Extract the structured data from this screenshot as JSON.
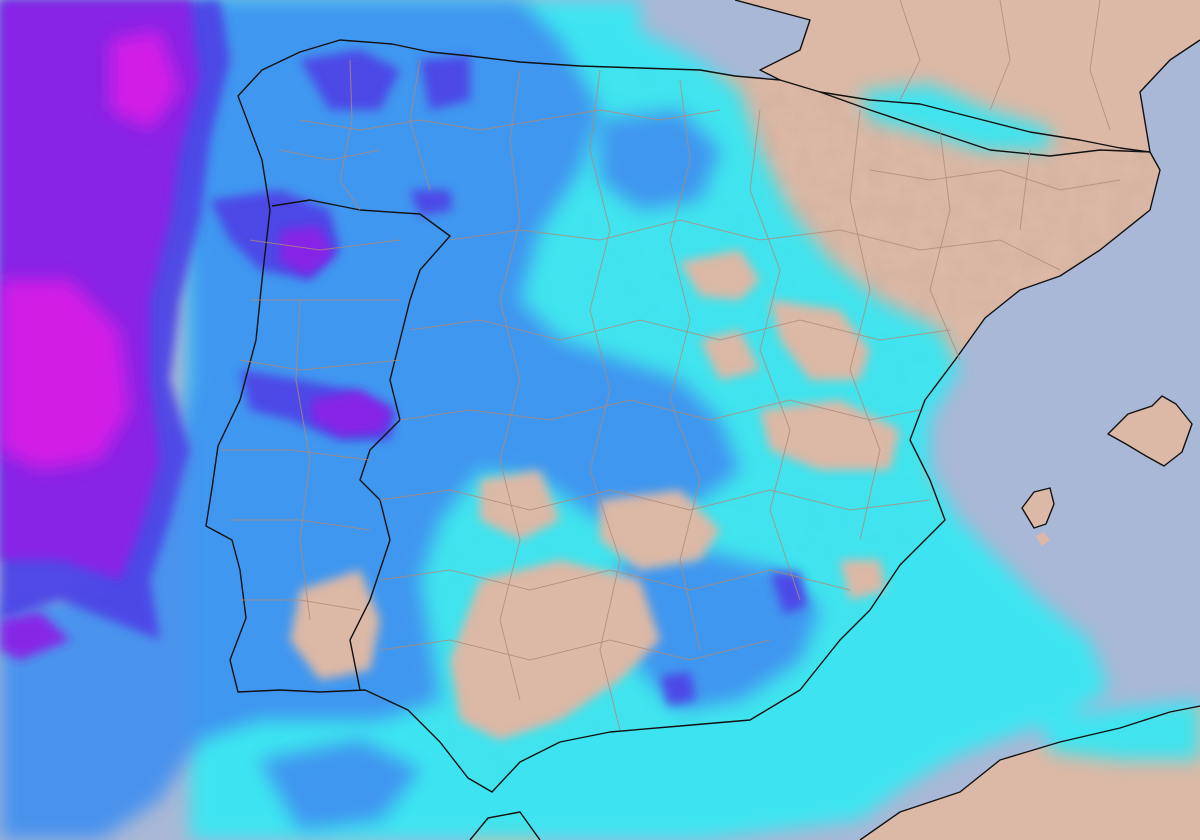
{
  "map": {
    "type": "precipitation-forecast",
    "colors": {
      "sea": "#a9b8d6",
      "land": "#dcb8a6",
      "land_relief_light": "#e8c9b8",
      "precip_light": "#38e6f2",
      "precip_moderate": "#3f8ff0",
      "precip_heavy": "#4d45e6",
      "precip_very_heavy": "#8a22e6",
      "precip_extreme": "#e01ee6",
      "coastline": "#111111",
      "admin_border": "#b08a78"
    },
    "layers": [
      "sea",
      "land",
      "relief",
      "precipitation",
      "coastline",
      "admin-borders"
    ]
  }
}
